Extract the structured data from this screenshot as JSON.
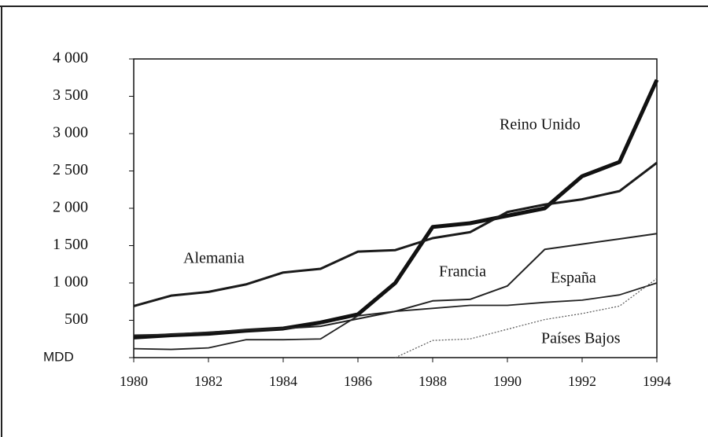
{
  "chart_data": {
    "type": "line",
    "x": [
      1980,
      1981,
      1982,
      1983,
      1984,
      1985,
      1986,
      1987,
      1988,
      1989,
      1990,
      1991,
      1992,
      1993,
      1994
    ],
    "xlim": [
      1980,
      1994
    ],
    "xticks": [
      1980,
      1982,
      1984,
      1986,
      1988,
      1990,
      1992,
      1994
    ],
    "ylim": [
      0,
      4000
    ],
    "yticks": [
      {
        "value": 0,
        "label": "MDD"
      },
      500,
      {
        "value": 1000,
        "label": "1 000"
      },
      {
        "value": 1500,
        "label": "1 500"
      },
      {
        "value": 2000,
        "label": "2 000"
      },
      {
        "value": 2500,
        "label": "2 500"
      },
      {
        "value": 3000,
        "label": "3 000"
      },
      {
        "value": 3500,
        "label": "3 500"
      },
      {
        "value": 4000,
        "label": "4 000"
      }
    ],
    "series": [
      {
        "name": "Reino Unido",
        "color": "#111111",
        "values": [
          270,
          300,
          320,
          360,
          390,
          470,
          580,
          1000,
          1750,
          1800,
          1900,
          2000,
          2430,
          2620,
          3720
        ]
      },
      {
        "name": "Alemania",
        "color": "#1a1a1a",
        "values": [
          690,
          830,
          880,
          980,
          1140,
          1190,
          1420,
          1440,
          1600,
          1680,
          1950,
          2050,
          2120,
          2230,
          2610
        ]
      },
      {
        "name": "Francia",
        "color": "#222222",
        "values": [
          300,
          310,
          340,
          370,
          390,
          420,
          520,
          620,
          760,
          780,
          960,
          1450,
          1520,
          1590,
          1660
        ]
      },
      {
        "name": "España",
        "color": "#222222",
        "values": [
          120,
          110,
          130,
          240,
          240,
          250,
          560,
          620,
          660,
          700,
          700,
          740,
          770,
          840,
          1000
        ]
      },
      {
        "name": "Países Bajos",
        "color": "#555555",
        "values": [
          null,
          null,
          null,
          null,
          null,
          null,
          null,
          0,
          230,
          250,
          380,
          510,
          590,
          690,
          1060
        ]
      }
    ]
  }
}
